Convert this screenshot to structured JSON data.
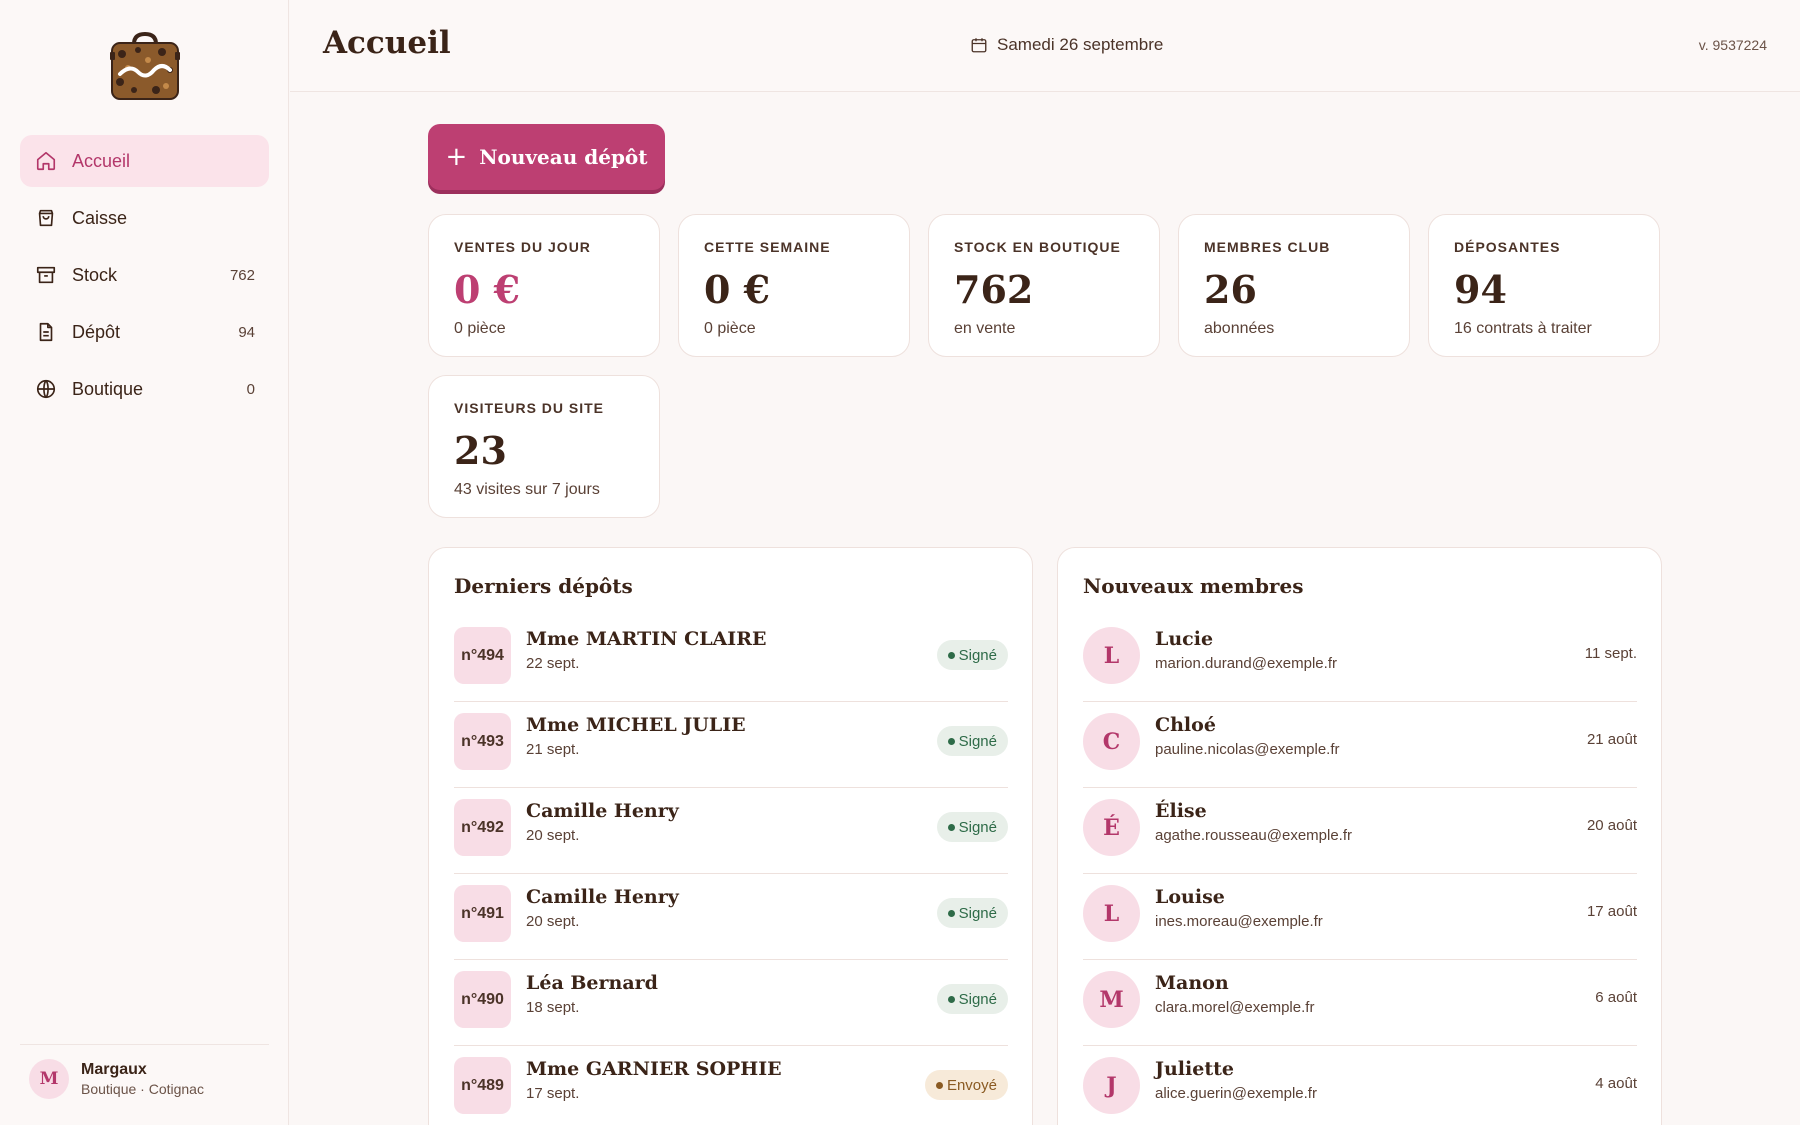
{
  "app": {
    "logo_alt": "Mutine"
  },
  "sidebar": {
    "items": [
      {
        "label": "Accueil",
        "icon": "home-icon",
        "count": ""
      },
      {
        "label": "Caisse",
        "icon": "shopping-bag-icon",
        "count": ""
      },
      {
        "label": "Stock",
        "icon": "archive-box-icon",
        "count": "762"
      },
      {
        "label": "Dépôt",
        "icon": "document-icon",
        "count": "94"
      },
      {
        "label": "Boutique",
        "icon": "globe-icon",
        "count": "0"
      }
    ],
    "user": {
      "initial": "M",
      "name": "Margaux",
      "sub": "Boutique · Cotignac"
    }
  },
  "header": {
    "title": "Accueil",
    "date": "Samedi 26 septembre",
    "version": "v. 9537224"
  },
  "actions": {
    "new_deposit": "Nouveau dépôt",
    "plus": "+"
  },
  "stats": [
    {
      "title": "VENTES DU JOUR",
      "value": "0 €",
      "sub": "0 pièce"
    },
    {
      "title": "CETTE SEMAINE",
      "value": "0 €",
      "sub": "0 pièce"
    },
    {
      "title": "STOCK EN BOUTIQUE",
      "value": "762",
      "sub": "en vente"
    },
    {
      "title": "MEMBRES CLUB",
      "value": "26",
      "sub": "abonnées"
    },
    {
      "title": "DÉPOSANTES",
      "value": "94",
      "sub": "16 contrats à traiter"
    },
    {
      "title": "VISITEURS DU SITE",
      "value": "23",
      "sub": "43 visites sur 7 jours"
    }
  ],
  "deposits": {
    "title": "Derniers dépôts",
    "rows": [
      {
        "num": "n°494",
        "name": "Mme MARTIN CLAIRE",
        "date": "22 sept.",
        "status": "Signé"
      },
      {
        "num": "n°493",
        "name": "Mme MICHEL JULIE",
        "date": "21 sept.",
        "status": "Signé"
      },
      {
        "num": "n°492",
        "name": "Camille Henry",
        "date": "20 sept.",
        "status": "Signé"
      },
      {
        "num": "n°491",
        "name": "Camille Henry",
        "date": "20 sept.",
        "status": "Signé"
      },
      {
        "num": "n°490",
        "name": "Léa Bernard",
        "date": "18 sept.",
        "status": "Signé"
      },
      {
        "num": "n°489",
        "name": "Mme GARNIER SOPHIE",
        "date": "17 sept.",
        "status": "Envoyé"
      }
    ]
  },
  "members": {
    "title": "Nouveaux membres",
    "rows": [
      {
        "initial": "L",
        "name": "Lucie",
        "email": "marion.durand@exemple.fr",
        "date": "11 sept."
      },
      {
        "initial": "C",
        "name": "Chloé",
        "email": "pauline.nicolas@exemple.fr",
        "date": "21 août"
      },
      {
        "initial": "É",
        "name": "Élise",
        "email": "agathe.rousseau@exemple.fr",
        "date": "20 août"
      },
      {
        "initial": "L",
        "name": "Louise",
        "email": "ines.moreau@exemple.fr",
        "date": "17 août"
      },
      {
        "initial": "M",
        "name": "Manon",
        "email": "clara.morel@exemple.fr",
        "date": "6 août"
      },
      {
        "initial": "J",
        "name": "Juliette",
        "email": "alice.guerin@exemple.fr",
        "date": "4 août"
      }
    ]
  }
}
